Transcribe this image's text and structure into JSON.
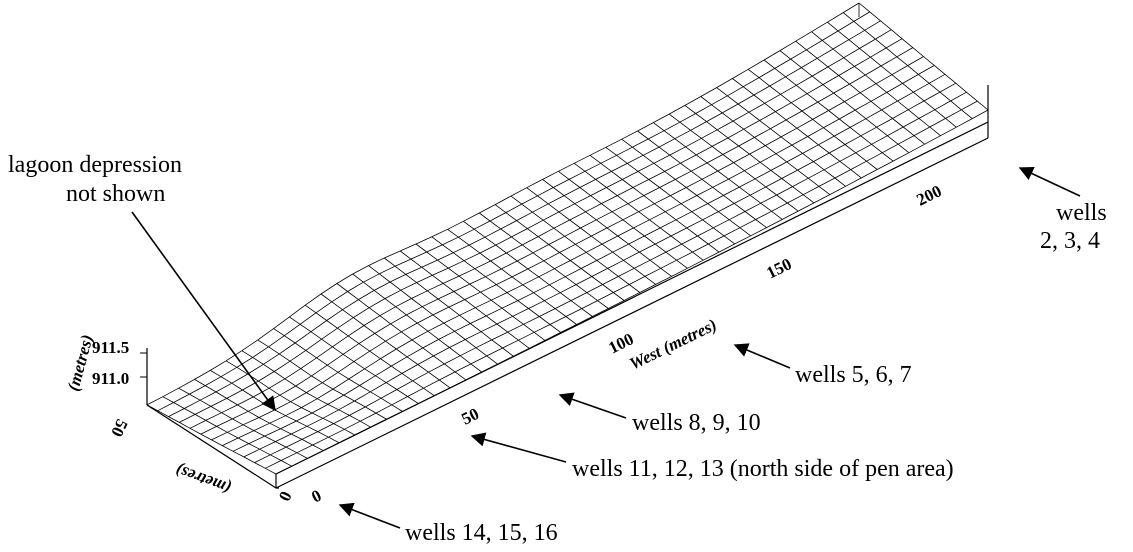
{
  "annotations": {
    "lagoon_line1": "lagoon depression",
    "lagoon_line2": "not shown",
    "wells_234_line1": "wells",
    "wells_234_line2": "2, 3, 4",
    "wells_567": "wells 5, 6, 7",
    "wells_8910": "wells 8, 9, 10",
    "wells_111213": "wells 11, 12, 13 (north side of pen area)",
    "wells_141516": "wells 14, 15, 16"
  },
  "axes": {
    "west_label": "West (metres)",
    "west_ticks": [
      "0",
      "50",
      "100",
      "150",
      "200"
    ],
    "north_label": "(metres)",
    "north_ticks": [
      "0",
      "50"
    ],
    "z_label": "(metres)",
    "z_ticks": [
      "911.0",
      "911.5"
    ]
  }
}
